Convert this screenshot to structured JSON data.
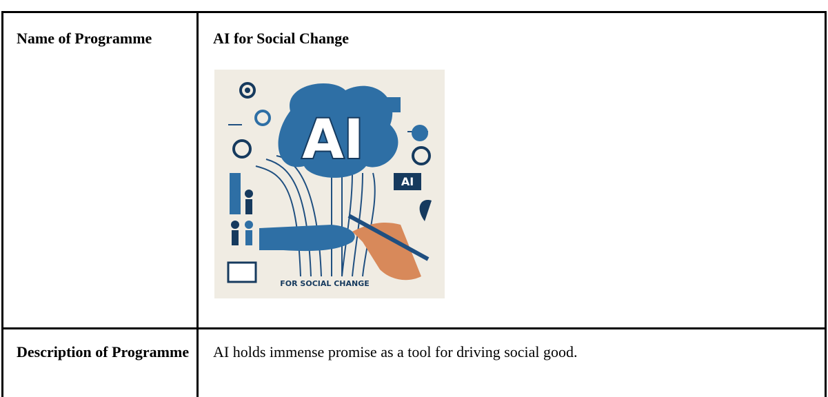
{
  "table": {
    "rows": [
      [
        "Name of Programme",
        "AI for Social Change"
      ],
      [
        "Description of Programme",
        "AI holds immense promise as a tool for driving social good."
      ]
    ]
  },
  "image": {
    "heading": "AI",
    "badge": "AI",
    "caption": "FOR SOCIAL CHANGE"
  }
}
